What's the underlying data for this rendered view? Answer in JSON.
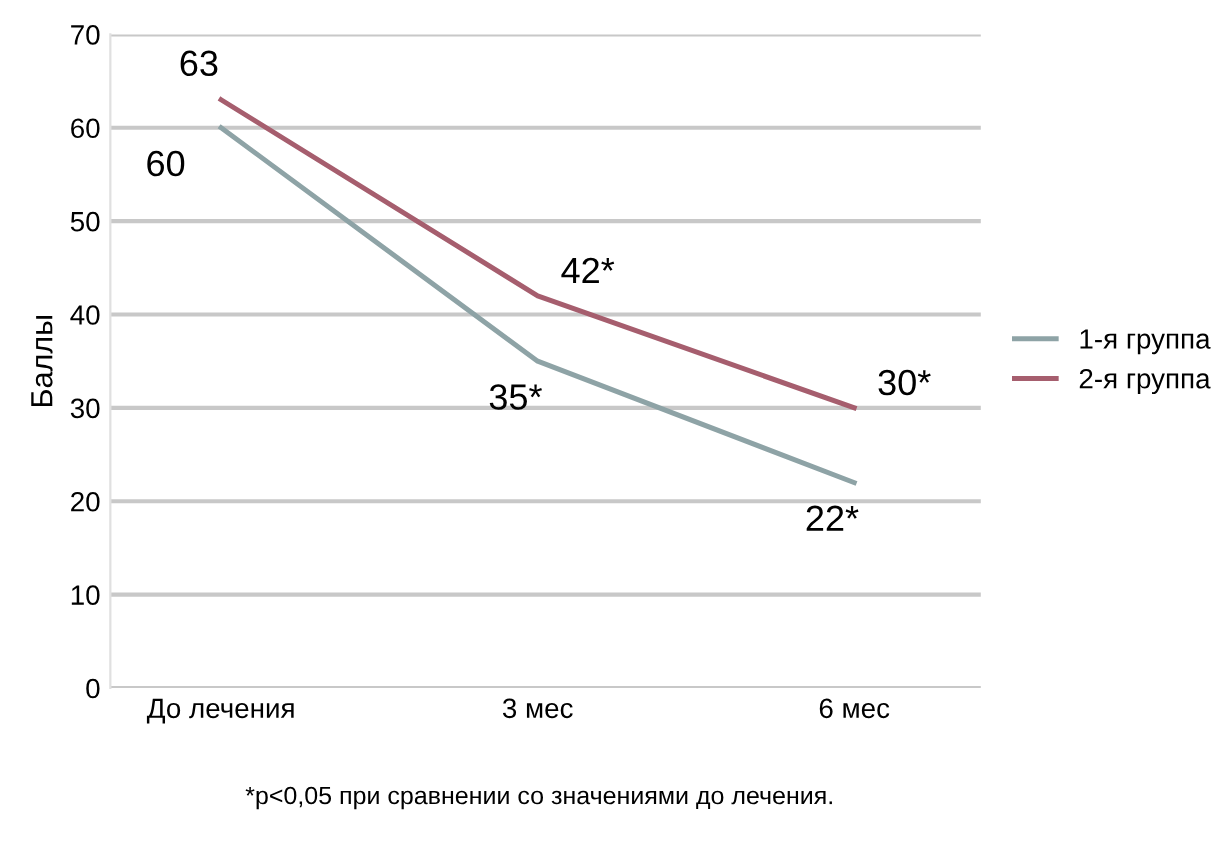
{
  "chart_data": {
    "type": "line",
    "ylabel": "Баллы",
    "categories": [
      "До лечения",
      "3 мес",
      "6 мес"
    ],
    "series": [
      {
        "name": "1-я группа",
        "color": "#8ea3a6",
        "values": [
          60,
          35,
          22
        ],
        "value_labels": [
          "60",
          "35*",
          "22*"
        ]
      },
      {
        "name": "2-я группа",
        "color": "#a65e6e",
        "values": [
          63,
          42,
          30
        ],
        "value_labels": [
          "63",
          "42*",
          "30*"
        ]
      }
    ],
    "ylim": [
      0,
      70
    ],
    "yticks": [
      0,
      10,
      20,
      30,
      40,
      50,
      60,
      70
    ],
    "grid": "y",
    "legend": "right",
    "marker": "none",
    "line_style": "solid",
    "annotations": [
      "*p<0,05 при сравнении со значениями до лечения."
    ]
  }
}
